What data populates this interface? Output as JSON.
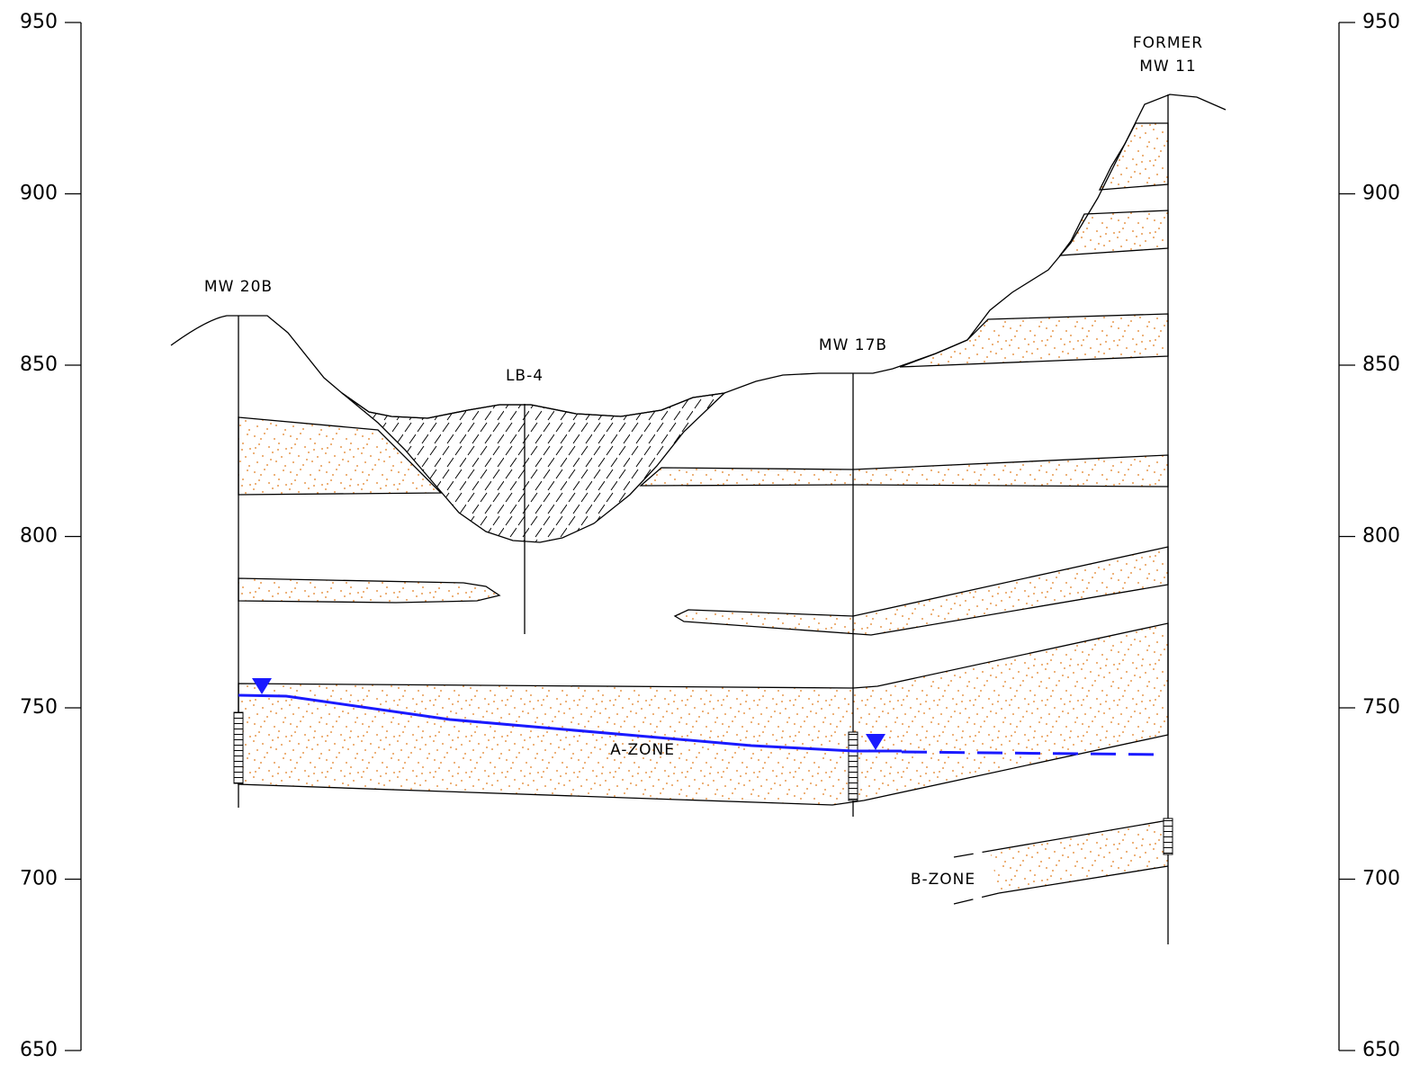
{
  "elevation_axis": {
    "range": [
      650,
      950
    ],
    "ticks": [
      950,
      900,
      850,
      800,
      750,
      700,
      650
    ]
  },
  "wells": [
    [
      "MW 20B"
    ],
    [
      "LB-4"
    ],
    [
      "MW 17B"
    ],
    [
      "FORMER",
      "MW 11"
    ]
  ],
  "zones": [
    "A-ZONE",
    "B-ZONE"
  ]
}
